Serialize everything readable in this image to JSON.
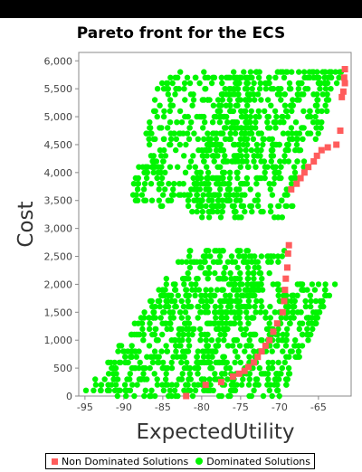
{
  "chart_data": {
    "type": "scatter",
    "title": "Pareto front for the ECS",
    "xlabel": "ExpectedUtility",
    "ylabel": "Cost",
    "xlim": [
      -95.8,
      -60.8
    ],
    "ylim": [
      0,
      6150
    ],
    "xticks": [
      "-95",
      "-90",
      "-85",
      "-80",
      "-75",
      "-70",
      "-65"
    ],
    "yticks": [
      "0",
      "500",
      "1,000",
      "1,500",
      "2,000",
      "2,500",
      "3,000",
      "3,500",
      "4,000",
      "4,500",
      "5,000",
      "5,500",
      "6,000"
    ],
    "grid": false,
    "legend_position": "bottom",
    "series": [
      {
        "name": "Non Dominated Solutions",
        "color": "#ff5c5c",
        "marker": "square",
        "points": [
          [
            -82,
            0
          ],
          [
            -79.5,
            200
          ],
          [
            -77.5,
            250
          ],
          [
            -76,
            350
          ],
          [
            -75.2,
            400
          ],
          [
            -74.5,
            450
          ],
          [
            -74,
            520
          ],
          [
            -73.3,
            600
          ],
          [
            -72.8,
            700
          ],
          [
            -72.3,
            800
          ],
          [
            -71.8,
            900
          ],
          [
            -71.3,
            1000
          ],
          [
            -70.8,
            1150
          ],
          [
            -70.3,
            1300
          ],
          [
            -69.6,
            1500
          ],
          [
            -69.4,
            1700
          ],
          [
            -69.3,
            1900
          ],
          [
            -69.2,
            2100
          ],
          [
            -69,
            2300
          ],
          [
            -68.9,
            2550
          ],
          [
            -68.8,
            2700
          ],
          [
            -68.5,
            3700
          ],
          [
            -67.8,
            3800
          ],
          [
            -67.3,
            3900
          ],
          [
            -66.8,
            4000
          ],
          [
            -66.3,
            4100
          ],
          [
            -65.6,
            4200
          ],
          [
            -65.2,
            4300
          ],
          [
            -64.6,
            4400
          ],
          [
            -63.8,
            4450
          ],
          [
            -62.7,
            4500
          ],
          [
            -62.2,
            4750
          ],
          [
            -62,
            5350
          ],
          [
            -61.8,
            5450
          ],
          [
            -61.6,
            5600
          ],
          [
            -61.7,
            5700
          ],
          [
            -61.6,
            5850
          ]
        ]
      },
      {
        "name": "Dominated Solutions",
        "color": "#00f500",
        "marker": "circle",
        "points": []
      }
    ]
  },
  "legend": {
    "items": [
      "Non Dominated Solutions",
      "Dominated Solutions"
    ]
  }
}
